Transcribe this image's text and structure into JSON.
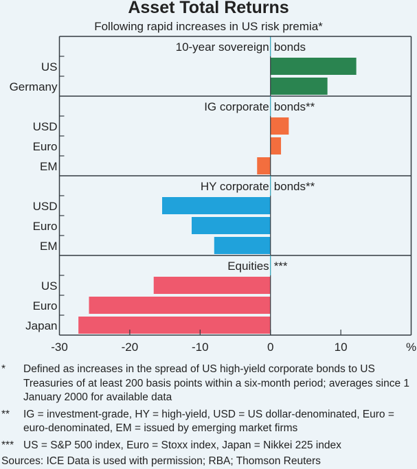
{
  "chart_data": {
    "type": "bar",
    "orientation": "horizontal",
    "title": "Asset Total Returns",
    "subtitle": "Following rapid increases in US risk premia*",
    "xlabel": "",
    "x_unit": "%",
    "xlim": [
      -30,
      20
    ],
    "x_ticks": [
      -30,
      -20,
      -10,
      0,
      10
    ],
    "x_tick_labels": [
      "-30",
      "-20",
      "-10",
      "0",
      "10"
    ],
    "grid": false,
    "panels": [
      {
        "title_left": "10-year sovereign",
        "title_right": "bonds",
        "color": "#2a8450",
        "categories": [
          "US",
          "Germany"
        ],
        "values": [
          12.2,
          8.1
        ]
      },
      {
        "title_left": "IG corporate",
        "title_right": "bonds**",
        "color": "#f36e3e",
        "categories": [
          "USD",
          "Euro",
          "EM"
        ],
        "values": [
          2.6,
          1.5,
          -1.9
        ]
      },
      {
        "title_left": "HY corporate",
        "title_right": "bonds**",
        "color": "#20a2db",
        "categories": [
          "USD",
          "Euro",
          "EM"
        ],
        "values": [
          -15.4,
          -11.2,
          -8.0
        ]
      },
      {
        "title_left": "Equities",
        "title_right": "***",
        "color": "#ef596d",
        "categories": [
          "US",
          "Euro",
          "Japan"
        ],
        "values": [
          -16.6,
          -25.8,
          -27.3
        ]
      }
    ]
  },
  "footnotes": [
    {
      "mark": "*",
      "text": "Defined as increases in the spread of US high-yield corporate bonds to US Treasuries of at least 200 basis points within a six-month period; averages since 1 January 2000 for available data"
    },
    {
      "mark": "**",
      "text": "IG = investment-grade, HY = high-yield, USD = US dollar-denominated, Euro = euro-denominated, EM = issued by emerging market firms"
    },
    {
      "mark": "***",
      "text": "US = S&P 500 index, Euro = Stoxx index, Japan = Nikkei 225 index"
    }
  ],
  "sources": "Sources: ICE Data is used with permission; RBA; Thomson Reuters"
}
